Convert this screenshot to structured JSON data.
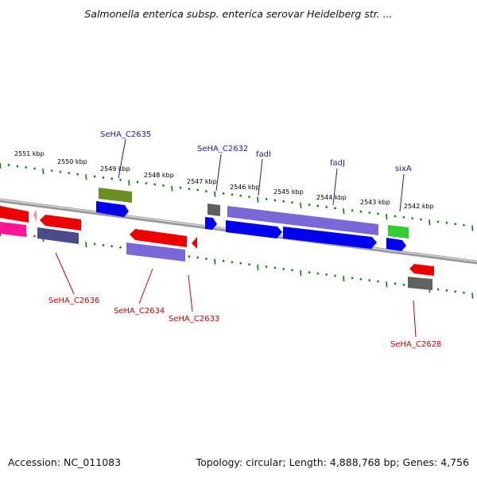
{
  "title": "Salmonella enterica subsp. enterica serovar Heidelberg str. ...",
  "footer": {
    "accession": "Accession: NC_011083",
    "summary": "Topology: circular; Length: 4,888,768 bp; Genes: 4,756"
  },
  "colors": {
    "forward_label": "#1a1aa8",
    "reverse_label": "#cc0000",
    "tick": "#008000",
    "backbone": "#808080"
  },
  "scale_labels": [
    "2551 kbp",
    "2550 kbp",
    "2549 kbp",
    "2548 kbp",
    "2547 kbp",
    "2546 kbp",
    "2545 kbp",
    "2544 kbp",
    "2543 kbp",
    "2542 kbp"
  ],
  "forward_gene_labels": [
    "SeHA_C2635",
    "SeHA_C2632",
    "fadI",
    "fadJ",
    "sixA"
  ],
  "reverse_gene_labels": [
    "SeHA_C2636",
    "SeHA_C2634",
    "SeHA_C2633",
    "SeHA_C2628"
  ],
  "feature_colors": {
    "cds": "#0000ee",
    "gene": "#7b68d8",
    "reverse_cds": "#ee0000",
    "pseudo": "#606060",
    "olive": "#6b8e23",
    "green": "#33cc33",
    "pink": "#ff1493",
    "navy": "#4b4b8c"
  }
}
